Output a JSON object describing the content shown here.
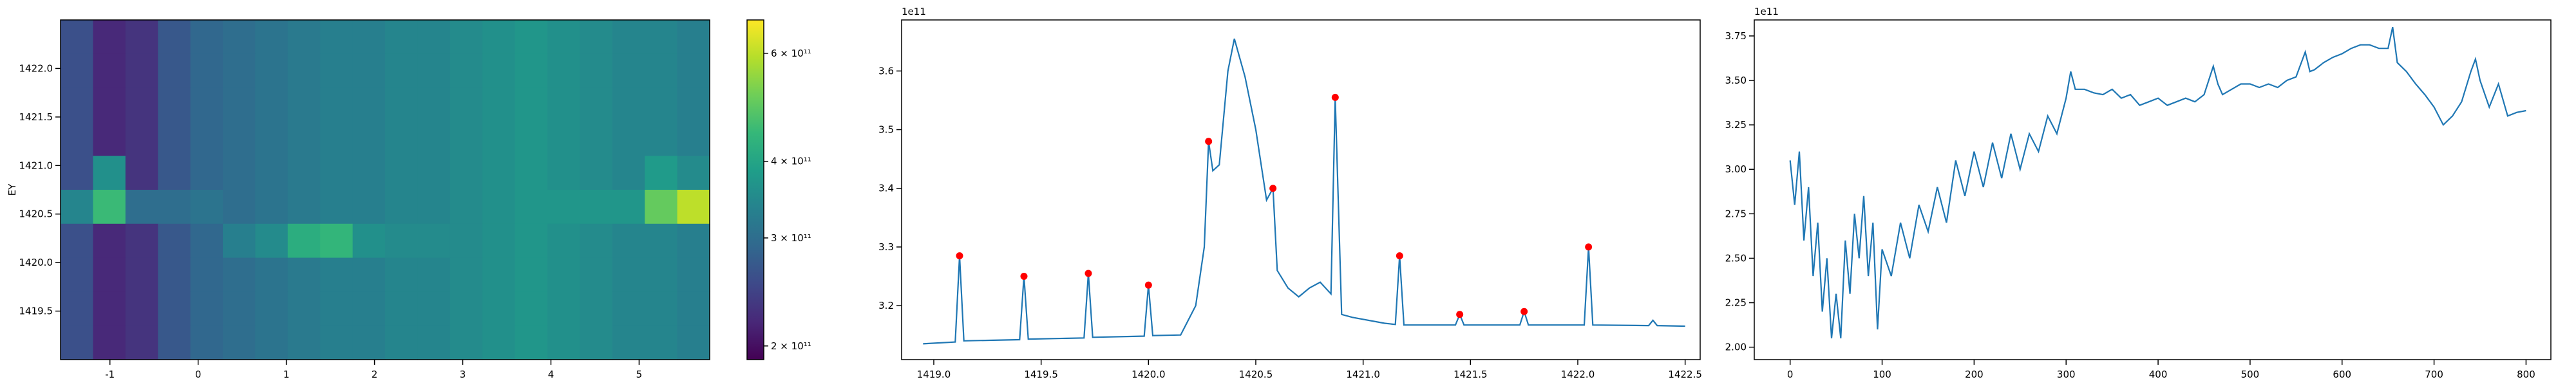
{
  "chart_data": [
    {
      "type": "heatmap",
      "ylabel": "EY",
      "xlim": [
        -1.56,
        5.8
      ],
      "ylim": [
        1419.0,
        1422.5
      ],
      "xticks": [
        -1,
        0,
        1,
        2,
        3,
        4,
        5
      ],
      "yticks": [
        1419.5,
        {
          "value": 1420,
          "label": "1420.0"
        },
        1420.5,
        {
          "value": 1421,
          "label": "1421.0"
        },
        1421.5,
        {
          "value": 1422,
          "label": "1422.0"
        }
      ],
      "colormap": "viridis",
      "clim": [
        190000000000.0,
        680000000000.0
      ],
      "log_color": true,
      "cticks": [
        {
          "value": 200000000000.0,
          "label": "2 × 10¹¹"
        },
        {
          "value": 300000000000.0,
          "label": "3 × 10¹¹"
        },
        {
          "value": 400000000000.0,
          "label": "4 × 10¹¹"
        },
        {
          "value": 600000000000.0,
          "label": "6 × 10¹¹"
        }
      ],
      "z": [
        [
          260000000000.0,
          220000000000.0,
          230000000000.0,
          270000000000.0,
          290000000000.0,
          300000000000.0,
          310000000000.0,
          320000000000.0,
          330000000000.0,
          330000000000.0,
          340000000000.0,
          340000000000.0,
          350000000000.0,
          360000000000.0,
          370000000000.0,
          360000000000.0,
          350000000000.0,
          340000000000.0,
          340000000000.0,
          330000000000.0
        ],
        [
          260000000000.0,
          220000000000.0,
          230000000000.0,
          270000000000.0,
          290000000000.0,
          300000000000.0,
          310000000000.0,
          320000000000.0,
          330000000000.0,
          330000000000.0,
          340000000000.0,
          340000000000.0,
          350000000000.0,
          360000000000.0,
          370000000000.0,
          360000000000.0,
          350000000000.0,
          340000000000.0,
          340000000000.0,
          330000000000.0
        ],
        [
          260000000000.0,
          220000000000.0,
          230000000000.0,
          270000000000.0,
          290000000000.0,
          300000000000.0,
          310000000000.0,
          320000000000.0,
          330000000000.0,
          330000000000.0,
          340000000000.0,
          340000000000.0,
          350000000000.0,
          360000000000.0,
          370000000000.0,
          360000000000.0,
          350000000000.0,
          340000000000.0,
          340000000000.0,
          330000000000.0
        ],
        [
          260000000000.0,
          220000000000.0,
          230000000000.0,
          270000000000.0,
          290000000000.0,
          300000000000.0,
          310000000000.0,
          320000000000.0,
          330000000000.0,
          330000000000.0,
          340000000000.0,
          340000000000.0,
          350000000000.0,
          360000000000.0,
          370000000000.0,
          360000000000.0,
          350000000000.0,
          340000000000.0,
          340000000000.0,
          330000000000.0
        ],
        [
          260000000000.0,
          360000000000.0,
          230000000000.0,
          270000000000.0,
          290000000000.0,
          300000000000.0,
          310000000000.0,
          320000000000.0,
          330000000000.0,
          330000000000.0,
          340000000000.0,
          340000000000.0,
          350000000000.0,
          360000000000.0,
          370000000000.0,
          360000000000.0,
          350000000000.0,
          340000000000.0,
          380000000000.0,
          350000000000.0
        ],
        [
          340000000000.0,
          450000000000.0,
          300000000000.0,
          300000000000.0,
          310000000000.0,
          300000000000.0,
          310000000000.0,
          320000000000.0,
          330000000000.0,
          330000000000.0,
          340000000000.0,
          340000000000.0,
          350000000000.0,
          360000000000.0,
          370000000000.0,
          370000000000.0,
          370000000000.0,
          370000000000.0,
          500000000000.0,
          600000000000.0
        ],
        [
          260000000000.0,
          220000000000.0,
          230000000000.0,
          270000000000.0,
          290000000000.0,
          330000000000.0,
          350000000000.0,
          420000000000.0,
          440000000000.0,
          360000000000.0,
          350000000000.0,
          350000000000.0,
          350000000000.0,
          360000000000.0,
          370000000000.0,
          360000000000.0,
          350000000000.0,
          340000000000.0,
          340000000000.0,
          330000000000.0
        ],
        [
          260000000000.0,
          220000000000.0,
          230000000000.0,
          270000000000.0,
          290000000000.0,
          300000000000.0,
          310000000000.0,
          320000000000.0,
          330000000000.0,
          330000000000.0,
          340000000000.0,
          340000000000.0,
          350000000000.0,
          360000000000.0,
          370000000000.0,
          360000000000.0,
          350000000000.0,
          340000000000.0,
          340000000000.0,
          330000000000.0
        ],
        [
          260000000000.0,
          220000000000.0,
          230000000000.0,
          270000000000.0,
          290000000000.0,
          300000000000.0,
          310000000000.0,
          320000000000.0,
          330000000000.0,
          330000000000.0,
          340000000000.0,
          340000000000.0,
          350000000000.0,
          360000000000.0,
          370000000000.0,
          360000000000.0,
          350000000000.0,
          340000000000.0,
          340000000000.0,
          330000000000.0
        ],
        [
          260000000000.0,
          220000000000.0,
          230000000000.0,
          270000000000.0,
          290000000000.0,
          300000000000.0,
          310000000000.0,
          320000000000.0,
          330000000000.0,
          330000000000.0,
          340000000000.0,
          340000000000.0,
          350000000000.0,
          360000000000.0,
          370000000000.0,
          360000000000.0,
          350000000000.0,
          340000000000.0,
          340000000000.0,
          330000000000.0
        ]
      ]
    },
    {
      "type": "line",
      "offset_label": "1e11",
      "xlim": [
        1418.85,
        1422.57
      ],
      "ylim": [
        3.108,
        3.687
      ],
      "xticks": [
        {
          "value": 1419,
          "label": "1419.0"
        },
        1419.5,
        {
          "value": 1420,
          "label": "1420.0"
        },
        1420.5,
        {
          "value": 1421,
          "label": "1421.0"
        },
        1421.5,
        {
          "value": 1422,
          "label": "1422.0"
        },
        1422.5
      ],
      "yticks": [
        3.2,
        3.3,
        3.4,
        3.5,
        3.6
      ],
      "series": [
        {
          "color": "#1f77b4",
          "x": [
            1418.95,
            1419.1,
            1419.12,
            1419.14,
            1419.4,
            1419.42,
            1419.44,
            1419.7,
            1419.72,
            1419.74,
            1419.98,
            1420.0,
            1420.02,
            1420.15,
            1420.22,
            1420.26,
            1420.28,
            1420.3,
            1420.33,
            1420.37,
            1420.4,
            1420.45,
            1420.5,
            1420.55,
            1420.58,
            1420.6,
            1420.65,
            1420.7,
            1420.75,
            1420.8,
            1420.85,
            1420.87,
            1420.9,
            1420.95,
            1421.1,
            1421.15,
            1421.17,
            1421.19,
            1421.43,
            1421.45,
            1421.47,
            1421.73,
            1421.75,
            1421.77,
            1422.03,
            1422.05,
            1422.07,
            1422.33,
            1422.35,
            1422.37,
            1422.5
          ],
          "values": [
            3.135,
            3.138,
            3.285,
            3.14,
            3.142,
            3.25,
            3.143,
            3.145,
            3.255,
            3.146,
            3.148,
            3.235,
            3.149,
            3.15,
            3.2,
            3.3,
            3.48,
            3.43,
            3.44,
            3.6,
            3.655,
            3.59,
            3.5,
            3.38,
            3.4,
            3.26,
            3.23,
            3.215,
            3.23,
            3.24,
            3.22,
            3.555,
            3.185,
            3.18,
            3.17,
            3.168,
            3.285,
            3.167,
            3.167,
            3.185,
            3.167,
            3.167,
            3.19,
            3.167,
            3.167,
            3.3,
            3.167,
            3.166,
            3.175,
            3.166,
            3.165
          ]
        },
        {
          "marker": "o",
          "color": "#ff0000",
          "x": [
            1419.12,
            1419.42,
            1419.72,
            1420.0,
            1420.28,
            1420.58,
            1420.87,
            1421.17,
            1421.45,
            1421.75,
            1422.05
          ],
          "values": [
            3.285,
            3.25,
            3.255,
            3.235,
            3.48,
            3.4,
            3.555,
            3.285,
            3.185,
            3.19,
            3.3
          ]
        }
      ]
    },
    {
      "type": "line",
      "offset_label": "1e11",
      "xlim": [
        -39,
        827
      ],
      "ylim": [
        1.93,
        3.84
      ],
      "xticks": [
        0,
        100,
        200,
        300,
        400,
        500,
        600,
        700,
        800
      ],
      "yticks": [
        {
          "value": 2,
          "label": "2.00"
        },
        {
          "value": 2.25,
          "label": "2.25"
        },
        {
          "value": 2.5,
          "label": "2.50"
        },
        {
          "value": 2.75,
          "label": "2.75"
        },
        {
          "value": 3,
          "label": "3.00"
        },
        {
          "value": 3.25,
          "label": "3.25"
        },
        {
          "value": 3.5,
          "label": "3.50"
        },
        {
          "value": 3.75,
          "label": "3.75"
        }
      ],
      "series": [
        {
          "color": "#1f77b4",
          "x": [
            0,
            5,
            10,
            15,
            20,
            25,
            30,
            35,
            40,
            45,
            50,
            55,
            60,
            65,
            70,
            75,
            80,
            85,
            90,
            95,
            100,
            110,
            120,
            130,
            140,
            150,
            160,
            170,
            180,
            190,
            200,
            210,
            220,
            230,
            240,
            250,
            260,
            270,
            280,
            290,
            300,
            305,
            310,
            320,
            330,
            340,
            350,
            360,
            370,
            380,
            390,
            400,
            410,
            420,
            430,
            440,
            450,
            460,
            465,
            470,
            480,
            490,
            500,
            510,
            520,
            530,
            540,
            550,
            560,
            565,
            570,
            580,
            590,
            600,
            610,
            620,
            630,
            640,
            650,
            655,
            660,
            670,
            680,
            690,
            700,
            710,
            720,
            730,
            740,
            745,
            750,
            760,
            770,
            780,
            790,
            800
          ],
          "values": [
            3.05,
            2.8,
            3.1,
            2.6,
            2.9,
            2.4,
            2.7,
            2.2,
            2.5,
            2.05,
            2.3,
            2.05,
            2.6,
            2.3,
            2.75,
            2.5,
            2.85,
            2.4,
            2.7,
            2.1,
            2.55,
            2.4,
            2.7,
            2.5,
            2.8,
            2.65,
            2.9,
            2.7,
            3.05,
            2.85,
            3.1,
            2.9,
            3.15,
            2.95,
            3.2,
            3.0,
            3.2,
            3.1,
            3.3,
            3.2,
            3.4,
            3.55,
            3.45,
            3.45,
            3.43,
            3.42,
            3.45,
            3.4,
            3.42,
            3.36,
            3.38,
            3.4,
            3.36,
            3.38,
            3.4,
            3.38,
            3.42,
            3.58,
            3.48,
            3.42,
            3.45,
            3.48,
            3.48,
            3.46,
            3.48,
            3.46,
            3.5,
            3.52,
            3.66,
            3.55,
            3.56,
            3.6,
            3.63,
            3.65,
            3.68,
            3.7,
            3.7,
            3.68,
            3.68,
            3.8,
            3.6,
            3.55,
            3.48,
            3.42,
            3.35,
            3.25,
            3.3,
            3.38,
            3.55,
            3.62,
            3.5,
            3.35,
            3.48,
            3.3,
            3.32,
            3.33
          ]
        }
      ]
    }
  ]
}
